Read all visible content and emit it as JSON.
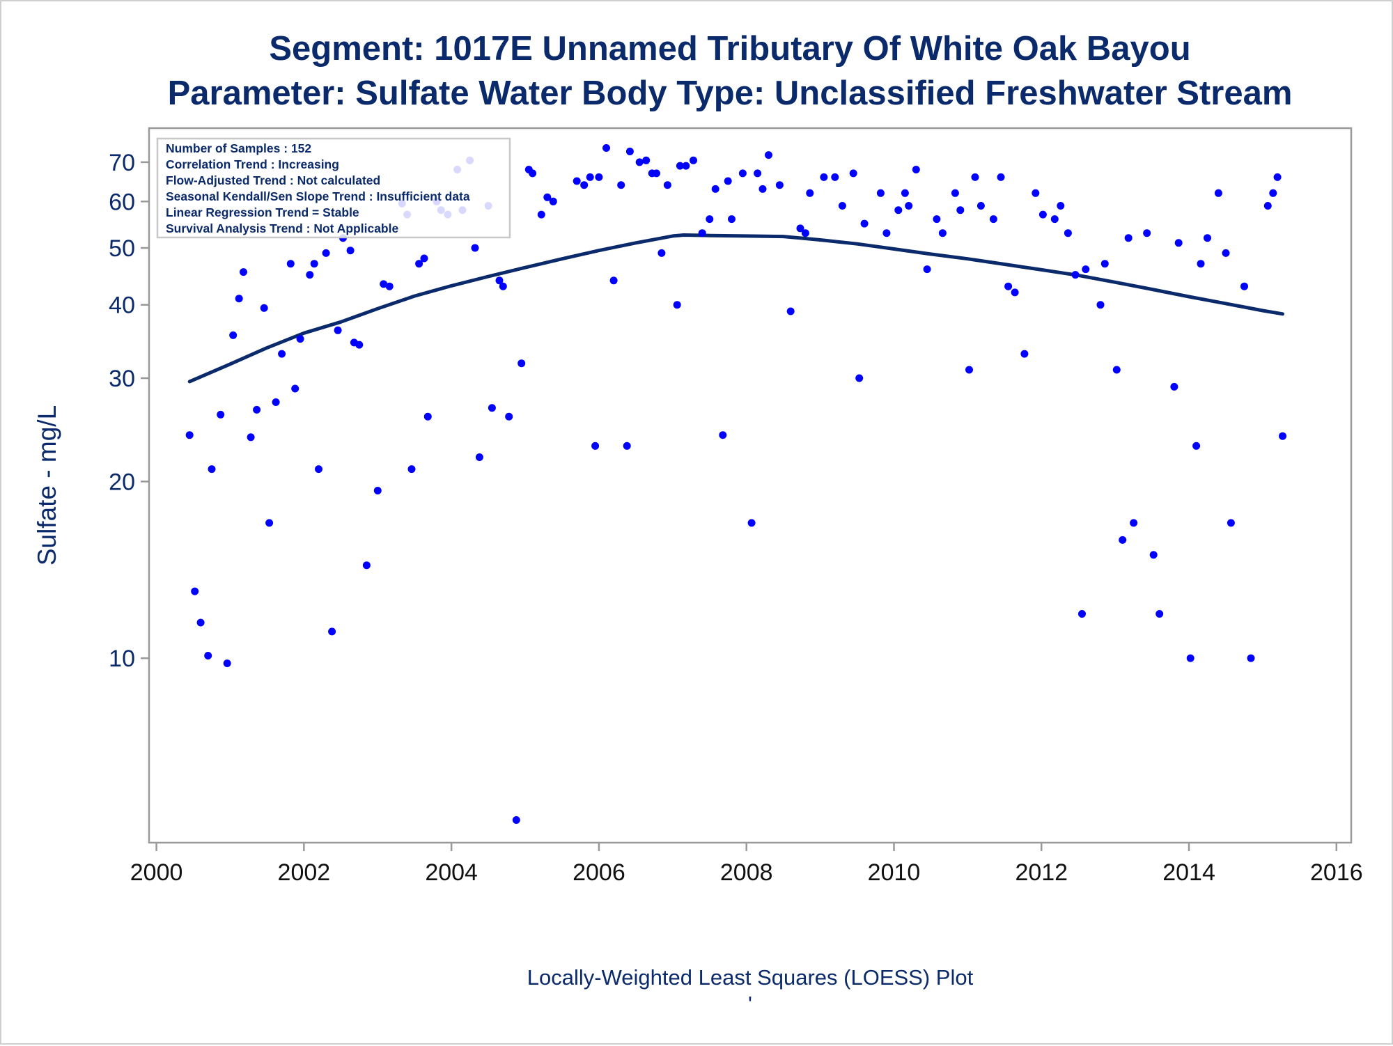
{
  "chart_data": {
    "type": "scatter",
    "title": "Segment: 1017E  Unnamed Tributary Of White Oak Bayou",
    "subtitle": "Parameter: Sulfate   Water Body Type: Unclassified Freshwater Stream",
    "xlabel": "",
    "ylabel": "Sulfate - mg/L",
    "footnote": "Locally-Weighted Least Squares (LOESS) Plot",
    "footnote_mark": "'",
    "y_scale": "log",
    "xlim": [
      1999.9,
      2016.2
    ],
    "ylim": [
      4.85,
      80
    ],
    "x_ticks": [
      2000,
      2002,
      2004,
      2006,
      2008,
      2010,
      2012,
      2014,
      2016
    ],
    "x_tick_labels": [
      "2000",
      "2002",
      "2004",
      "2006",
      "2008",
      "2010",
      "2012",
      "2014",
      "2016"
    ],
    "y_ticks": [
      10,
      20,
      30,
      40,
      50,
      60,
      70
    ],
    "y_tick_labels": [
      "10",
      "20",
      "30",
      "40",
      "50",
      "60",
      "70"
    ],
    "grid": false,
    "inset_lines": [
      "Number of Samples : 152",
      "Correlation Trend : Increasing",
      "Flow-Adjusted Trend : Not calculated",
      "Seasonal Kendall/Sen Slope Trend : Insufficient data",
      "Linear Regression Trend = Stable",
      "Survival Analysis Trend : Not Applicable"
    ],
    "inset_placement": "top-left",
    "colors": {
      "points": "#0000ff",
      "loess": "#0b2a6b",
      "text": "#0b2a6b",
      "frame": "#999999"
    },
    "points": [
      [
        2000.45,
        24
      ],
      [
        2000.52,
        13
      ],
      [
        2000.6,
        11.5
      ],
      [
        2000.7,
        10.1
      ],
      [
        2000.75,
        21
      ],
      [
        2000.87,
        26
      ],
      [
        2000.96,
        9.8
      ],
      [
        2001.04,
        35.5
      ],
      [
        2001.12,
        41
      ],
      [
        2001.18,
        45.5
      ],
      [
        2001.28,
        23.8
      ],
      [
        2001.36,
        26.5
      ],
      [
        2001.46,
        39.5
      ],
      [
        2001.53,
        17
      ],
      [
        2001.62,
        27.3
      ],
      [
        2001.7,
        33
      ],
      [
        2001.82,
        47
      ],
      [
        2001.88,
        28.8
      ],
      [
        2001.95,
        35
      ],
      [
        2002.08,
        45
      ],
      [
        2002.14,
        47
      ],
      [
        2002.2,
        21
      ],
      [
        2002.3,
        49
      ],
      [
        2002.38,
        11.1
      ],
      [
        2002.46,
        36.2
      ],
      [
        2002.53,
        52
      ],
      [
        2002.63,
        49.5
      ],
      [
        2002.68,
        34.5
      ],
      [
        2002.75,
        34.2
      ],
      [
        2002.85,
        14.4
      ],
      [
        2003.0,
        19.3
      ],
      [
        2003.08,
        43.4
      ],
      [
        2003.16,
        43
      ],
      [
        2003.33,
        59.5
      ],
      [
        2003.4,
        57
      ],
      [
        2003.46,
        21
      ],
      [
        2003.56,
        47
      ],
      [
        2003.63,
        48
      ],
      [
        2003.68,
        25.8
      ],
      [
        2003.8,
        60
      ],
      [
        2003.86,
        58
      ],
      [
        2003.95,
        57
      ],
      [
        2004.08,
        68
      ],
      [
        2004.15,
        58
      ],
      [
        2004.25,
        70.5
      ],
      [
        2004.32,
        50
      ],
      [
        2004.38,
        22
      ],
      [
        2004.5,
        59
      ],
      [
        2004.55,
        26.7
      ],
      [
        2004.65,
        44
      ],
      [
        2004.7,
        43
      ],
      [
        2004.78,
        25.8
      ],
      [
        2004.88,
        5.3
      ],
      [
        2004.95,
        31.8
      ],
      [
        2005.05,
        68
      ],
      [
        2005.1,
        67
      ],
      [
        2005.22,
        57
      ],
      [
        2005.3,
        61
      ],
      [
        2005.38,
        60
      ],
      [
        2005.7,
        65
      ],
      [
        2005.8,
        64
      ],
      [
        2005.88,
        66
      ],
      [
        2005.95,
        23
      ],
      [
        2006.0,
        66
      ],
      [
        2006.1,
        74
      ],
      [
        2006.2,
        44
      ],
      [
        2006.3,
        64
      ],
      [
        2006.38,
        23
      ],
      [
        2006.42,
        73
      ],
      [
        2006.55,
        70
      ],
      [
        2006.64,
        70.5
      ],
      [
        2006.72,
        67
      ],
      [
        2006.78,
        67
      ],
      [
        2006.85,
        49
      ],
      [
        2006.93,
        64
      ],
      [
        2007.06,
        40
      ],
      [
        2007.1,
        69
      ],
      [
        2007.18,
        69
      ],
      [
        2007.28,
        70.5
      ],
      [
        2007.4,
        53
      ],
      [
        2007.5,
        56
      ],
      [
        2007.58,
        63
      ],
      [
        2007.68,
        24
      ],
      [
        2007.75,
        65
      ],
      [
        2007.8,
        56
      ],
      [
        2007.95,
        67
      ],
      [
        2008.07,
        17
      ],
      [
        2008.15,
        67
      ],
      [
        2008.22,
        63
      ],
      [
        2008.3,
        72
      ],
      [
        2008.45,
        64
      ],
      [
        2008.6,
        39
      ],
      [
        2008.73,
        54
      ],
      [
        2008.8,
        53
      ],
      [
        2008.86,
        62
      ],
      [
        2009.05,
        66
      ],
      [
        2009.2,
        66
      ],
      [
        2009.3,
        59
      ],
      [
        2009.45,
        67
      ],
      [
        2009.53,
        30
      ],
      [
        2009.6,
        55
      ],
      [
        2009.82,
        62
      ],
      [
        2009.9,
        53
      ],
      [
        2010.06,
        58
      ],
      [
        2010.15,
        62
      ],
      [
        2010.2,
        59
      ],
      [
        2010.3,
        68
      ],
      [
        2010.45,
        46
      ],
      [
        2010.58,
        56
      ],
      [
        2010.66,
        53
      ],
      [
        2010.83,
        62
      ],
      [
        2010.9,
        58
      ],
      [
        2011.02,
        31
      ],
      [
        2011.1,
        66
      ],
      [
        2011.18,
        59
      ],
      [
        2011.35,
        56
      ],
      [
        2011.45,
        66
      ],
      [
        2011.55,
        43
      ],
      [
        2011.64,
        42
      ],
      [
        2011.77,
        33
      ],
      [
        2011.92,
        62
      ],
      [
        2012.02,
        57
      ],
      [
        2012.18,
        56
      ],
      [
        2012.26,
        59
      ],
      [
        2012.36,
        53
      ],
      [
        2012.46,
        45
      ],
      [
        2012.55,
        11.9
      ],
      [
        2012.6,
        46
      ],
      [
        2012.8,
        40
      ],
      [
        2012.86,
        47
      ],
      [
        2013.02,
        31
      ],
      [
        2013.1,
        15.9
      ],
      [
        2013.18,
        52
      ],
      [
        2013.25,
        17
      ],
      [
        2013.43,
        53
      ],
      [
        2013.52,
        15
      ],
      [
        2013.6,
        11.9
      ],
      [
        2013.8,
        29
      ],
      [
        2013.86,
        51
      ],
      [
        2014.02,
        10
      ],
      [
        2014.1,
        23
      ],
      [
        2014.16,
        47
      ],
      [
        2014.25,
        52
      ],
      [
        2014.4,
        62
      ],
      [
        2014.5,
        49
      ],
      [
        2014.57,
        17
      ],
      [
        2014.75,
        43
      ],
      [
        2014.84,
        10
      ],
      [
        2015.07,
        59
      ],
      [
        2015.14,
        62
      ],
      [
        2015.2,
        66
      ],
      [
        2015.27,
        23.9
      ]
    ],
    "loess": [
      [
        2000.45,
        29.6
      ],
      [
        2001.0,
        31.7
      ],
      [
        2001.5,
        33.8
      ],
      [
        2002.0,
        35.8
      ],
      [
        2002.5,
        37.4
      ],
      [
        2003.0,
        39.4
      ],
      [
        2003.5,
        41.4
      ],
      [
        2004.0,
        43.1
      ],
      [
        2004.5,
        44.7
      ],
      [
        2005.0,
        46.3
      ],
      [
        2005.5,
        47.9
      ],
      [
        2006.0,
        49.5
      ],
      [
        2006.5,
        51.0
      ],
      [
        2007.0,
        52.4
      ],
      [
        2007.15,
        52.6
      ],
      [
        2007.5,
        52.5
      ],
      [
        2008.0,
        52.4
      ],
      [
        2008.5,
        52.3
      ],
      [
        2009.0,
        51.6
      ],
      [
        2009.5,
        50.8
      ],
      [
        2010.0,
        49.8
      ],
      [
        2010.5,
        48.8
      ],
      [
        2011.0,
        47.9
      ],
      [
        2011.5,
        46.9
      ],
      [
        2012.0,
        45.9
      ],
      [
        2012.5,
        44.9
      ],
      [
        2013.0,
        43.7
      ],
      [
        2013.5,
        42.5
      ],
      [
        2014.0,
        41.3
      ],
      [
        2014.5,
        40.2
      ],
      [
        2015.0,
        39.1
      ],
      [
        2015.27,
        38.6
      ]
    ]
  }
}
